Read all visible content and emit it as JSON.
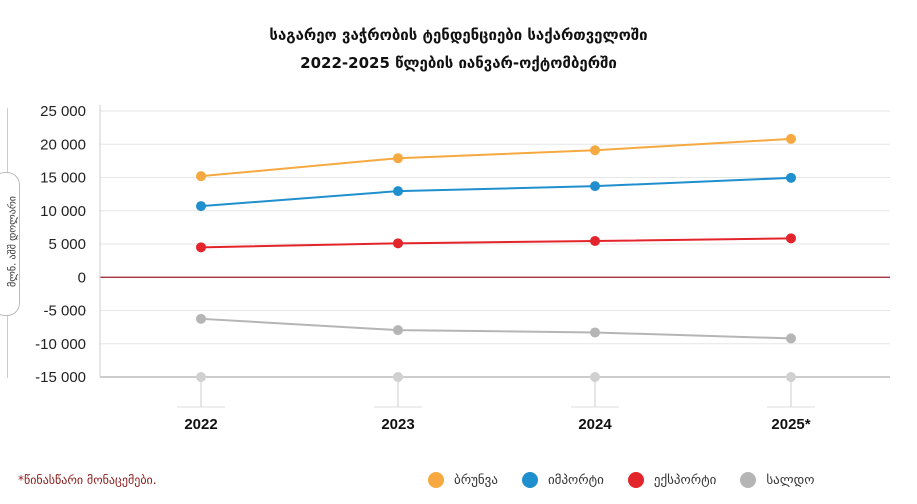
{
  "chart_data": {
    "type": "line",
    "title": "საგარეო ვაჭრობის ტენდენციები საქართველოში",
    "subtitle": "2022-2025 წლების იანვარ-ოქტომბერში",
    "ylabel": "მლნ. აშშ დოლარი",
    "xlabel": "",
    "categories": [
      "2022",
      "2023",
      "2024",
      "2025*"
    ],
    "ylim": [
      -15000,
      25000
    ],
    "yticks": [
      25000,
      20000,
      15000,
      10000,
      5000,
      0,
      -5000,
      -10000,
      -15000
    ],
    "ytick_labels": [
      "25 000",
      "20 000",
      "15 000",
      "10 000",
      "5 000",
      "0",
      "-5 000",
      "-10 000",
      "-15 000"
    ],
    "grid": true,
    "legend_position": "bottom-right",
    "series": [
      {
        "name": "ბრუნვა",
        "color": "#f5a940",
        "values": [
          15200,
          17900,
          19100,
          20800
        ]
      },
      {
        "name": "იმპორტი",
        "color": "#1f8fce",
        "values": [
          10700,
          12950,
          13700,
          14950
        ]
      },
      {
        "name": "ექსპორტი",
        "color": "#e3242b",
        "values": [
          4500,
          5100,
          5450,
          5850
        ]
      },
      {
        "name": "სალდო",
        "color": "#b5b5b5",
        "values": [
          -6250,
          -7950,
          -8300,
          -9200
        ]
      }
    ],
    "footnote": "*წინასწარი მონაცემები."
  }
}
